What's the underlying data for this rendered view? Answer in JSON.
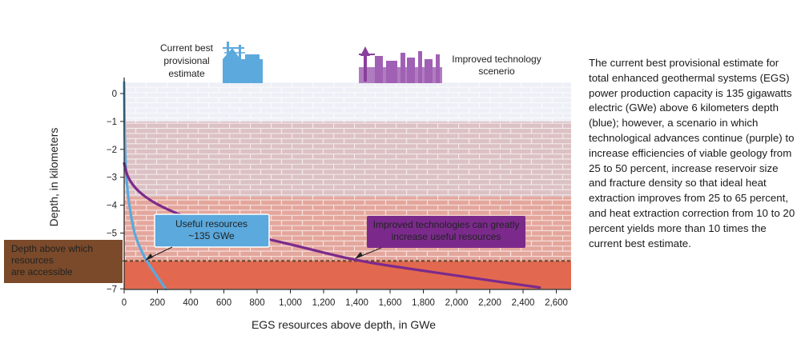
{
  "chart_data": {
    "type": "line",
    "xlabel": "EGS resources above depth, in GWe",
    "ylabel": "Depth, in kilometers",
    "xlim": [
      0,
      2700
    ],
    "ylim": [
      -7,
      0.4
    ],
    "x_ticks": [
      0,
      200,
      400,
      600,
      800,
      1000,
      1200,
      1400,
      1600,
      1800,
      2000,
      2200,
      2400,
      2600
    ],
    "x_tick_labels": [
      "0",
      "200",
      "400",
      "600",
      "800",
      "1,000",
      "1,200",
      "1,400",
      "1,600",
      "1,800",
      "2,000",
      "2,200",
      "2,400",
      "2,600"
    ],
    "y_ticks": [
      0,
      -1,
      -2,
      -3,
      -4,
      -5,
      -6,
      -7
    ],
    "y_tick_labels": [
      "0",
      "−1",
      "−2",
      "−3",
      "−4",
      "−5",
      "−6",
      "−7"
    ],
    "grid": false,
    "accessible_depth": -6,
    "layers": [
      {
        "top": 0.4,
        "bottom": -1,
        "color": "#eef0f7"
      },
      {
        "top": -1,
        "bottom": -3.7,
        "color": "#dcc1c4"
      },
      {
        "top": -3.7,
        "bottom": -6,
        "color": "#e4a69c"
      },
      {
        "top": -6,
        "bottom": -7,
        "color": "#e2694f"
      }
    ],
    "series": [
      {
        "color": "#5ba9dd",
        "x": [
          0,
          2,
          5,
          12,
          30,
          60,
          100,
          135,
          180,
          250
        ],
        "y": [
          0.4,
          -1,
          -2,
          -3,
          -4,
          -5,
          -5.6,
          -6,
          -6.4,
          -7
        ]
      },
      {
        "color": "#7b2a8c",
        "x": [
          0,
          20,
          80,
          200,
          400,
          700,
          1000,
          1400,
          1800,
          2200,
          2500
        ],
        "y": [
          -2.5,
          -3,
          -3.5,
          -4,
          -4.5,
          -5,
          -5.4,
          -6,
          -6.35,
          -6.7,
          -6.95
        ]
      }
    ],
    "annotations": {
      "current_title": [
        "Current best",
        "provisional",
        "estimate"
      ],
      "improved_title": [
        "Improved technology",
        "scenerio"
      ],
      "useful_box": [
        "Useful resources",
        "~135 GWe"
      ],
      "improved_box": [
        "Improved technologies can greatly",
        "increase useful resources"
      ],
      "depth_box": [
        "Depth above which",
        "resources",
        "are accessible"
      ]
    }
  },
  "caption": "The current best provisional estimate for total enhanced geothermal systems (EGS) power production capacity is 135 gigawatts electric (GWe) above 6 kilometers depth (blue); however, a scenario in which technological advances continue (purple) to increase efficiencies of viable geology from 25 to 50 percent, increase reservoir size and fracture density so that ideal heat extraction improves from 25 to 65 percent, and heat extraction correction from 10 to 20 percent yields more than 10 times the current best estimate."
}
